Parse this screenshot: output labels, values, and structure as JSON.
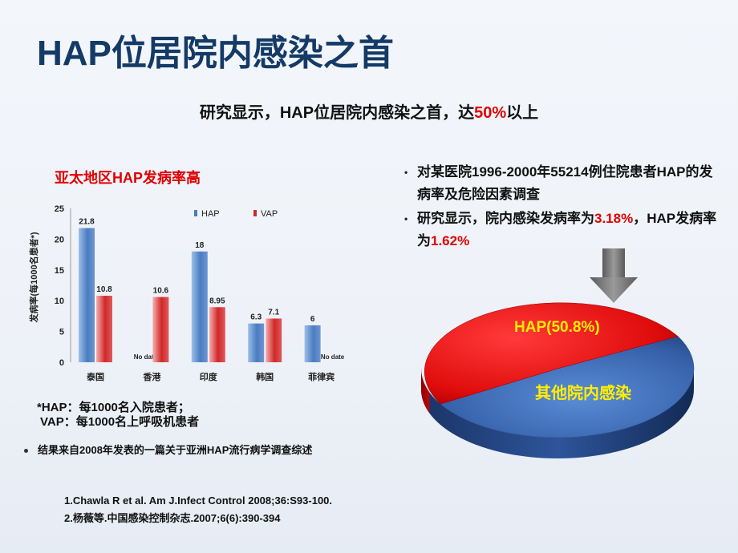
{
  "title": "HAP位居院内感染之首",
  "subtitle": {
    "prefix": "研究显示，HAP位居院内感染之首，达",
    "highlight": "50%",
    "suffix": "以上"
  },
  "chart_heading": "亚太地区HAP发病率高",
  "chart_data": {
    "type": "bar",
    "categories": [
      "泰国",
      "香港",
      "印度",
      "韩国",
      "菲律宾"
    ],
    "series": [
      {
        "name": "HAP",
        "values": [
          21.8,
          null,
          18,
          6.3,
          6
        ],
        "color": "#4a7cc0"
      },
      {
        "name": "VAP",
        "values": [
          10.8,
          10.6,
          8.95,
          7.1,
          null
        ],
        "color": "#d02828"
      }
    ],
    "data_labels": {
      "HAP": [
        "21.8",
        "No date",
        "18",
        "6.3",
        "6"
      ],
      "VAP": [
        "10.8",
        "10.6",
        "8.95",
        "7.1",
        "No date"
      ]
    },
    "ylabel": "发病率(每1000名患者*)",
    "ylim": [
      0,
      25
    ],
    "yticks": [
      "0",
      "5",
      "10",
      "15",
      "20",
      "25"
    ],
    "legend": "top-center"
  },
  "footnotes": {
    "hap": "*HAP：每1000名入院患者；",
    "vap": "VAP：每1000名上呼吸机患者"
  },
  "conclusion": "结果来自2008年发表的一篇关于亚洲HAP流行病学调查综述",
  "references": [
    "1.Chawla R et al. Am J.Infect Control 2008;36:S93-100.",
    "2.杨薇等.中国感染控制杂志.2007;6(6):390-394"
  ],
  "bullets": {
    "b1": "对某医院1996-2000年55214例住院患者HAP的发病率及危险因素调查",
    "b2_prefix": "研究显示，院内感染发病率为",
    "b2_val1": "3.18%",
    "b2_mid": "，HAP发病率为",
    "b2_val2": "1.62%",
    "marker": "•"
  },
  "pie": {
    "hap_label": "HAP(50.8%)",
    "other_label": "其他院内感染",
    "hap_percent": 50.8,
    "hap_color": "#e81010",
    "other_color": "#3f6fb8",
    "label_colors": {
      "hap": "#ffee00",
      "other": "#ffee00"
    }
  },
  "colors": {
    "title": "#143a66",
    "accent_red": "#e00000",
    "arrow": "#6a6a6a"
  }
}
